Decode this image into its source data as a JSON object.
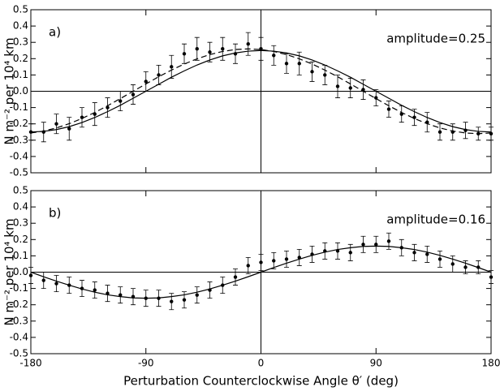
{
  "chart_data": [
    {
      "type": "errorbar",
      "label": "a)",
      "annotation": "amplitude=0.25",
      "ylabel": "N m⁻² per 10⁴ km",
      "xtick_labels": false,
      "x": [
        -180,
        -170,
        -160,
        -150,
        -140,
        -130,
        -120,
        -110,
        -100,
        -90,
        -80,
        -70,
        -60,
        -50,
        -40,
        -30,
        -20,
        -10,
        0,
        10,
        20,
        30,
        40,
        50,
        60,
        70,
        80,
        90,
        100,
        110,
        120,
        130,
        140,
        150,
        160,
        170,
        180
      ],
      "xlim": [
        -180,
        180
      ],
      "xticks": [
        -180,
        -90,
        0,
        90,
        180
      ],
      "ylim": [
        -0.5,
        0.5
      ],
      "yticks": [
        0.5,
        0.4,
        0.3,
        0.2,
        0.1,
        {
          "value": 0,
          "label": "0.0"
        },
        -0.1,
        -0.2,
        -0.3,
        -0.4,
        -0.5
      ],
      "hline": 0,
      "vline": 0,
      "series": [
        {
          "kind": "points",
          "color": "#000000",
          "values": [
            -0.25,
            -0.25,
            -0.2,
            -0.23,
            -0.16,
            -0.14,
            -0.1,
            -0.06,
            -0.02,
            0.06,
            0.1,
            0.15,
            0.23,
            0.26,
            0.24,
            0.26,
            0.23,
            0.29,
            0.26,
            0.22,
            0.17,
            0.17,
            0.12,
            0.1,
            0.03,
            0.02,
            0.01,
            -0.04,
            -0.11,
            -0.14,
            -0.16,
            -0.19,
            -0.25,
            -0.25,
            -0.24,
            -0.26,
            -0.26
          ],
          "errors": [
            0.05,
            0.06,
            0.06,
            0.07,
            0.06,
            0.07,
            0.06,
            0.06,
            0.06,
            0.06,
            0.06,
            0.07,
            0.06,
            0.07,
            0.06,
            0.07,
            0.06,
            0.07,
            0.07,
            0.06,
            0.06,
            0.07,
            0.06,
            0.06,
            0.07,
            0.06,
            0.06,
            0.05,
            0.05,
            0.05,
            0.05,
            0.06,
            0.05,
            0.05,
            0.05,
            0.04,
            0.04
          ]
        },
        {
          "kind": "line",
          "dash": true,
          "color": "#000000",
          "values": [
            -0.256,
            -0.244,
            -0.225,
            -0.199,
            -0.167,
            -0.13,
            -0.089,
            -0.045,
            0,
            0.045,
            0.089,
            0.13,
            0.167,
            0.199,
            0.225,
            0.244,
            0.256,
            0.26,
            0.256,
            0.244,
            0.225,
            0.199,
            0.167,
            0.13,
            0.089,
            0.045,
            0,
            -0.045,
            -0.089,
            -0.13,
            -0.167,
            -0.199,
            -0.225,
            -0.244,
            -0.256,
            -0.26,
            -0.256
          ]
        },
        {
          "kind": "line",
          "dash": false,
          "color": "#000000",
          "values": [
            -0.25,
            -0.246,
            -0.235,
            -0.217,
            -0.192,
            -0.161,
            -0.125,
            -0.086,
            -0.043,
            0,
            0.043,
            0.086,
            0.125,
            0.161,
            0.192,
            0.217,
            0.235,
            0.246,
            0.25,
            0.246,
            0.235,
            0.217,
            0.192,
            0.161,
            0.125,
            0.086,
            0.043,
            0,
            -0.043,
            -0.086,
            -0.125,
            -0.161,
            -0.192,
            -0.217,
            -0.235,
            -0.246,
            -0.25
          ]
        }
      ]
    },
    {
      "type": "errorbar",
      "label": "b)",
      "annotation": "amplitude=0.16",
      "ylabel": "N m⁻² per 10⁴ km",
      "xtick_labels": true,
      "xlabel": "Perturbation Counterclockwise Angle θ′ (deg)",
      "x": [
        -180,
        -170,
        -160,
        -150,
        -140,
        -130,
        -120,
        -110,
        -100,
        -90,
        -80,
        -70,
        -60,
        -50,
        -40,
        -30,
        -20,
        -10,
        0,
        10,
        20,
        30,
        40,
        50,
        60,
        70,
        80,
        90,
        100,
        110,
        120,
        130,
        140,
        150,
        160,
        170,
        180
      ],
      "xlim": [
        -180,
        180
      ],
      "xticks": [
        -180,
        -90,
        0,
        90,
        180
      ],
      "ylim": [
        -0.5,
        0.5
      ],
      "yticks": [
        0.5,
        0.4,
        0.3,
        0.2,
        0.1,
        {
          "value": 0,
          "label": "0.0"
        },
        -0.1,
        -0.2,
        -0.3,
        -0.4,
        -0.5
      ],
      "hline": 0,
      "vline": 0,
      "series": [
        {
          "kind": "points",
          "color": "#000000",
          "values": [
            -0.02,
            -0.05,
            -0.07,
            -0.08,
            -0.1,
            -0.11,
            -0.13,
            -0.14,
            -0.15,
            -0.16,
            -0.16,
            -0.18,
            -0.17,
            -0.14,
            -0.11,
            -0.08,
            -0.03,
            0.04,
            0.06,
            0.07,
            0.08,
            0.09,
            0.11,
            0.13,
            0.13,
            0.12,
            0.17,
            0.17,
            0.19,
            0.15,
            0.12,
            0.11,
            0.08,
            0.05,
            0.03,
            0.03,
            -0.03
          ],
          "errors": [
            0.05,
            0.05,
            0.05,
            0.05,
            0.05,
            0.05,
            0.05,
            0.05,
            0.05,
            0.05,
            0.05,
            0.05,
            0.05,
            0.05,
            0.05,
            0.05,
            0.05,
            0.05,
            0.05,
            0.05,
            0.05,
            0.05,
            0.05,
            0.05,
            0.05,
            0.05,
            0.05,
            0.05,
            0.05,
            0.05,
            0.05,
            0.05,
            0.05,
            0.05,
            0.04,
            0.04,
            0.04
          ]
        },
        {
          "kind": "line",
          "dash": false,
          "color": "#000000",
          "values": [
            0,
            -0.028,
            -0.055,
            -0.08,
            -0.103,
            -0.123,
            -0.139,
            -0.15,
            -0.158,
            -0.16,
            -0.158,
            -0.15,
            -0.139,
            -0.123,
            -0.103,
            -0.08,
            -0.055,
            -0.028,
            0,
            0.028,
            0.055,
            0.08,
            0.103,
            0.123,
            0.139,
            0.15,
            0.158,
            0.16,
            0.158,
            0.15,
            0.139,
            0.123,
            0.103,
            0.08,
            0.055,
            0.028,
            0
          ]
        }
      ]
    }
  ]
}
